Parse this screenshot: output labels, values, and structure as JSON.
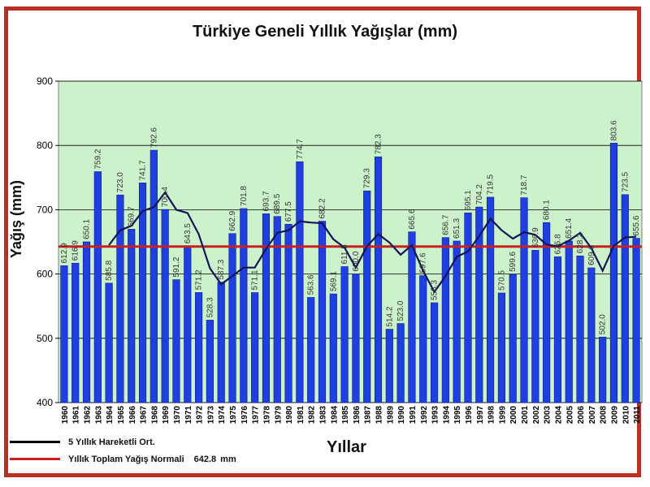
{
  "chart_data": {
    "type": "bar",
    "title": "Türkiye Geneli Yıllık Yağışlar (mm)",
    "xlabel": "Yıllar",
    "ylabel": "Yağış (mm)",
    "ylim": [
      400,
      900
    ],
    "yticks": [
      400,
      500,
      600,
      700,
      800,
      900
    ],
    "grid": true,
    "categories": [
      "1960",
      "1961",
      "1962",
      "1963",
      "1964",
      "1965",
      "1966",
      "1967",
      "1968",
      "1969",
      "1970",
      "1971",
      "1972",
      "1973",
      "1974",
      "1975",
      "1976",
      "1977",
      "1978",
      "1979",
      "1980",
      "1981",
      "1982",
      "1983",
      "1984",
      "1985",
      "1986",
      "1987",
      "1988",
      "1989",
      "1990",
      "1991",
      "1992",
      "1993",
      "1994",
      "1995",
      "1996",
      "1997",
      "1998",
      "1999",
      "2000",
      "2001",
      "2002",
      "2003",
      "2004",
      "2005",
      "2006",
      "2007",
      "2008",
      "2009",
      "2010",
      "2011"
    ],
    "series": [
      {
        "name": "Yıllık Toplam Yağış",
        "values": [
          612.9,
          616.9,
          650.1,
          759.2,
          585.8,
          723.0,
          669.7,
          741.7,
          792.6,
          700.4,
          591.2,
          643.5,
          571.2,
          528.3,
          587.3,
          662.9,
          701.8,
          571.1,
          693.7,
          689.5,
          677.5,
          774.7,
          563.6,
          682.2,
          569.1,
          611.5,
          600.0,
          729.3,
          782.3,
          514.2,
          523.0,
          665.6,
          597.6,
          555.3,
          656.7,
          651.3,
          695.1,
          704.2,
          719.5,
          570.5,
          599.6,
          718.7,
          636.9,
          680.1,
          626.8,
          651.4,
          628.2,
          609.6,
          502.0,
          803.6,
          723.5,
          655.6
        ]
      },
      {
        "name": "5 Yıllık Hareketli Ort.",
        "values": [
          null,
          null,
          null,
          null,
          645,
          668,
          675,
          698,
          704,
          727,
          700,
          695,
          662,
          609,
          584,
          597,
          610,
          610,
          639,
          664,
          668,
          682,
          680,
          679,
          654,
          641,
          610,
          643,
          662,
          649,
          630,
          645,
          605,
          572,
          597,
          627,
          635,
          659,
          686,
          668,
          655,
          665,
          661,
          646,
          643,
          652,
          664,
          640,
          605,
          644,
          657,
          658
        ]
      }
    ],
    "normal_line": {
      "name": "Yıllık Toplam Yağış Normali",
      "value": 642.8,
      "value_text": "642.8",
      "unit": "mm"
    },
    "colors": {
      "bar": "#1f3fe0",
      "bar_edge": "#0a1e8c",
      "moving_avg": "#14145a",
      "normal": "#c8201e",
      "plot_bg": "#ccf2cc",
      "frame": "#b83224"
    }
  }
}
